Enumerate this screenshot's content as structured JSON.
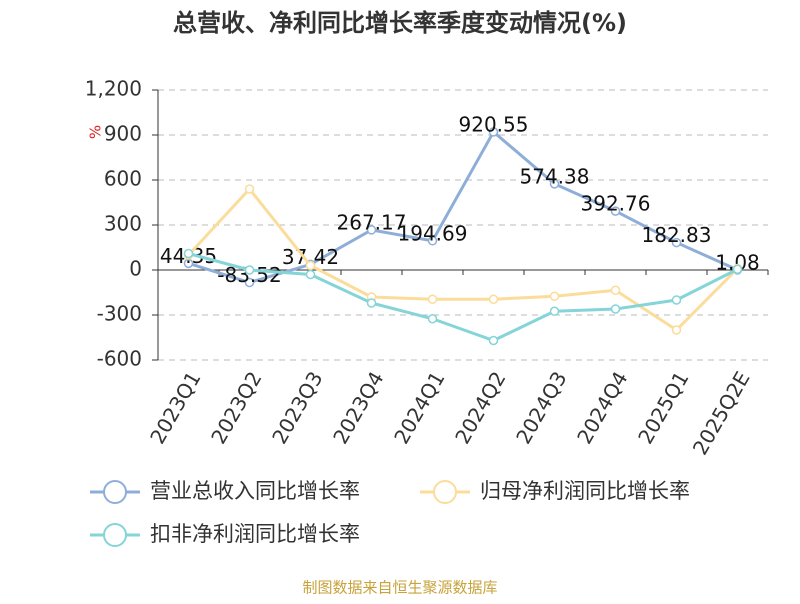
{
  "chart_data": {
    "type": "line",
    "title": "总营收、净利同比增长率季度变动情况(%)",
    "y_label": "%",
    "source": "制图数据来自恒生聚源数据库",
    "categories": [
      "2023Q1",
      "2023Q2",
      "2023Q3",
      "2023Q4",
      "2024Q1",
      "2024Q2",
      "2024Q3",
      "2024Q4",
      "2025Q1",
      "2025Q2E"
    ],
    "series": [
      {
        "name": "营业总收入同比增长率",
        "color": "#8eaed8",
        "show_labels": true,
        "values": [
          44.35,
          -83.52,
          37.42,
          267.17,
          194.69,
          920.55,
          574.38,
          392.76,
          182.83,
          1.08
        ]
      },
      {
        "name": "归母净利润同比增长率",
        "color": "#fbdc9a",
        "show_labels": false,
        "values": [
          100,
          540,
          30,
          -180,
          -195,
          -195,
          -175,
          -135,
          -400,
          10
        ]
      },
      {
        "name": "扣非净利润同比增长率",
        "color": "#84d4d8",
        "show_labels": false,
        "values": [
          110,
          0,
          -30,
          -220,
          -325,
          -470,
          -275,
          -260,
          -200,
          5
        ]
      }
    ],
    "ylim": [
      -600,
      1200
    ],
    "yticks": [
      -600,
      -300,
      0,
      300,
      600,
      900,
      {
        "value": 1200,
        "label": "1,200"
      }
    ],
    "grid": true
  }
}
